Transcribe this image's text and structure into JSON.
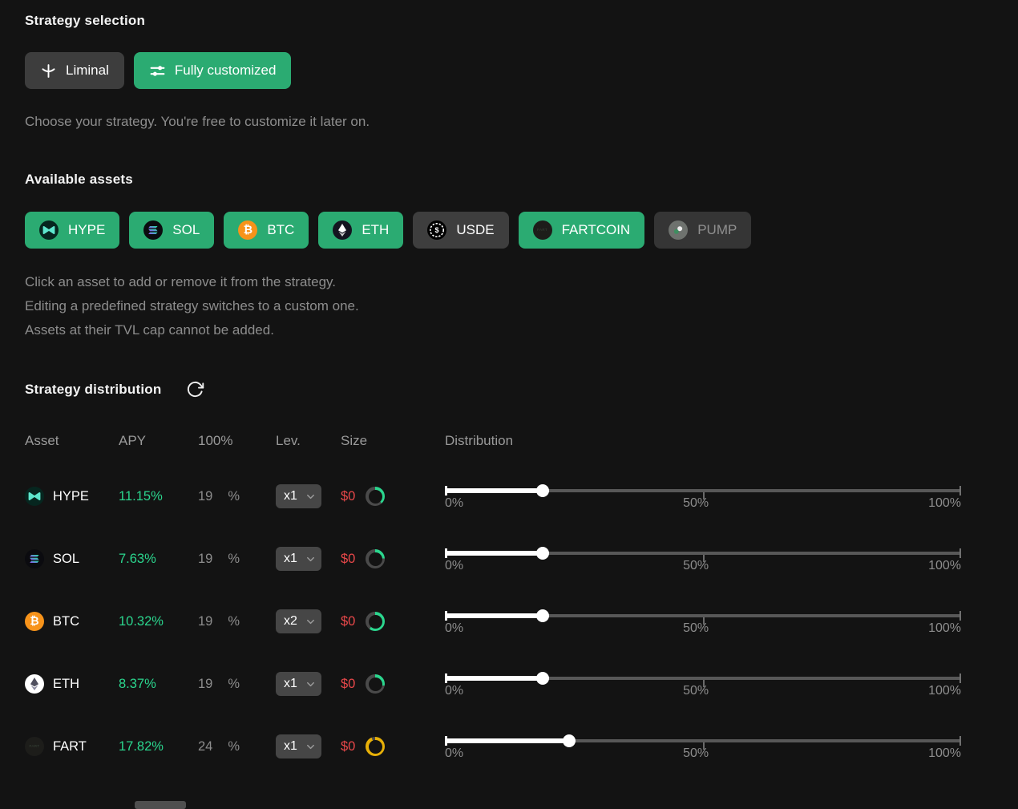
{
  "theme": {
    "background": "#131313",
    "accent_green": "#2bab72",
    "apy_green": "#2bd68e",
    "size_red": "#e9484a",
    "cap_yellow": "#e7b008",
    "ring_base": "#4a4a4a"
  },
  "strategy_selection": {
    "title": "Strategy selection",
    "options": [
      {
        "label": "Liminal",
        "icon": "liminal-icon",
        "selected": false
      },
      {
        "label": "Fully customized",
        "icon": "sliders-icon",
        "selected": true
      }
    ],
    "hint": "Choose your strategy. You're free to customize it later on."
  },
  "available_assets": {
    "title": "Available assets",
    "assets": [
      {
        "label": "HYPE",
        "icon": "hype-icon",
        "state": "selected"
      },
      {
        "label": "SOL",
        "icon": "sol-icon",
        "state": "selected"
      },
      {
        "label": "BTC",
        "icon": "btc-icon",
        "state": "selected"
      },
      {
        "label": "ETH",
        "icon": "eth-icon",
        "state": "selected"
      },
      {
        "label": "USDE",
        "icon": "usde-icon",
        "state": "unselected"
      },
      {
        "label": "FARTCOIN",
        "icon": "fartcoin-icon",
        "state": "selected"
      },
      {
        "label": "PUMP",
        "icon": "pump-icon",
        "state": "disabled"
      }
    ],
    "hints": [
      "Click an asset to add or remove it from the strategy.",
      "Editing a predefined strategy switches to a custom one.",
      "Assets at their TVL cap cannot be added."
    ]
  },
  "strategy_distribution": {
    "title": "Strategy distribution",
    "refresh_icon": "refresh-icon",
    "columns": [
      "Asset",
      "APY",
      "100%",
      "Lev.",
      "Size",
      "Distribution"
    ],
    "slider_labels": [
      "0%",
      "50%",
      "100%"
    ],
    "rows": [
      {
        "asset": "HYPE",
        "icon": "hype-icon",
        "apy": "11.15%",
        "allocation": "19",
        "allocation_unit": "%",
        "leverage": "x1",
        "size": "$0",
        "cap_percent": 38,
        "cap_color": "#2bd68e",
        "slider_percent": 19
      },
      {
        "asset": "SOL",
        "icon": "sol-icon",
        "apy": "7.63%",
        "allocation": "19",
        "allocation_unit": "%",
        "leverage": "x1",
        "size": "$0",
        "cap_percent": 24,
        "cap_color": "#2bd68e",
        "slider_percent": 19
      },
      {
        "asset": "BTC",
        "icon": "btc-icon",
        "apy": "10.32%",
        "allocation": "19",
        "allocation_unit": "%",
        "leverage": "x2",
        "size": "$0",
        "cap_percent": 60,
        "cap_color": "#2bd68e",
        "slider_percent": 19
      },
      {
        "asset": "ETH",
        "icon": "eth-light-icon",
        "apy": "8.37%",
        "allocation": "19",
        "allocation_unit": "%",
        "leverage": "x1",
        "size": "$0",
        "cap_percent": 28,
        "cap_color": "#2bd68e",
        "slider_percent": 19
      },
      {
        "asset": "FART",
        "icon": "fart-icon",
        "apy": "17.82%",
        "allocation": "24",
        "allocation_unit": "%",
        "leverage": "x1",
        "size": "$0",
        "cap_percent": 94,
        "cap_color": "#e7b008",
        "slider_percent": 24
      }
    ]
  }
}
